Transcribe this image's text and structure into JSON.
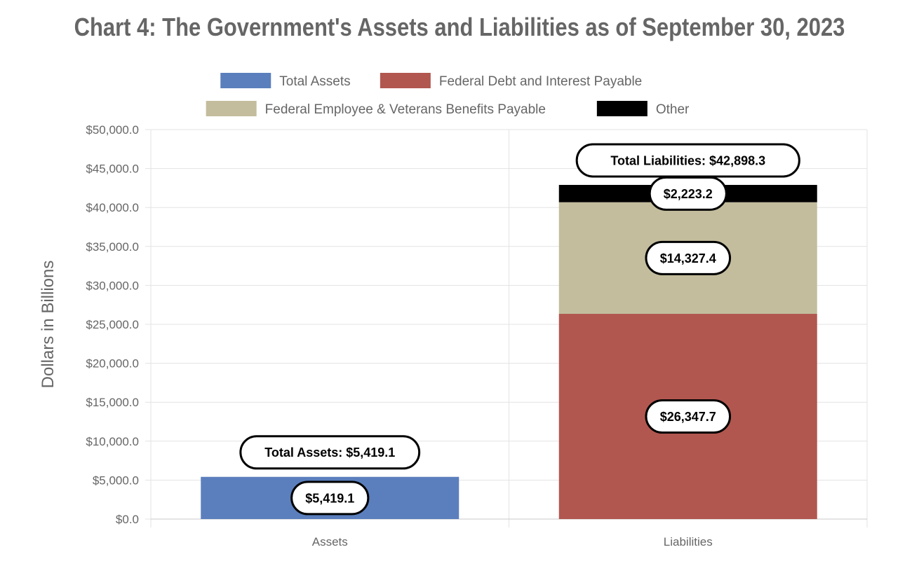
{
  "chart_data": {
    "type": "bar",
    "stacked": true,
    "title": "Chart 4: The Government's Assets and Liabilities as of September 30, 2023",
    "ylabel": "Dollars in Billions",
    "xlabel": "",
    "categories": [
      "Assets",
      "Liabilities"
    ],
    "ylim": [
      0,
      50000
    ],
    "yticks": [
      0,
      5000,
      10000,
      15000,
      20000,
      25000,
      30000,
      35000,
      40000,
      45000,
      50000
    ],
    "ytick_labels": [
      "$0.0",
      "$5,000.0",
      "$10,000.0",
      "$15,000.0",
      "$20,000.0",
      "$25,000.0",
      "$30,000.0",
      "$35,000.0",
      "$40,000.0",
      "$45,000.0",
      "$50,000.0"
    ],
    "grid": true,
    "legend_position": "top",
    "series": [
      {
        "name": "Total Assets",
        "color": "#5b7fbd",
        "values": [
          5419.1,
          0
        ],
        "value_labels": [
          "$5,419.1",
          ""
        ]
      },
      {
        "name": "Federal Debt and Interest Payable",
        "color": "#b1574f",
        "values": [
          0,
          26347.7
        ],
        "value_labels": [
          "",
          "$26,347.7"
        ]
      },
      {
        "name": "Federal Employee & Veterans Benefits Payable",
        "color": "#c3bd9d",
        "values": [
          0,
          14327.4
        ],
        "value_labels": [
          "",
          "$14,327.4"
        ]
      },
      {
        "name": "Other",
        "color": "#000000",
        "values": [
          0,
          2223.2
        ],
        "value_labels": [
          "",
          "$2,223.2"
        ]
      }
    ],
    "totals": [
      {
        "category": "Assets",
        "value": 5419.1,
        "label": "Total Assets: $5,419.1"
      },
      {
        "category": "Liabilities",
        "value": 42898.3,
        "label": "Total Liabilities: $42,898.3"
      }
    ]
  }
}
